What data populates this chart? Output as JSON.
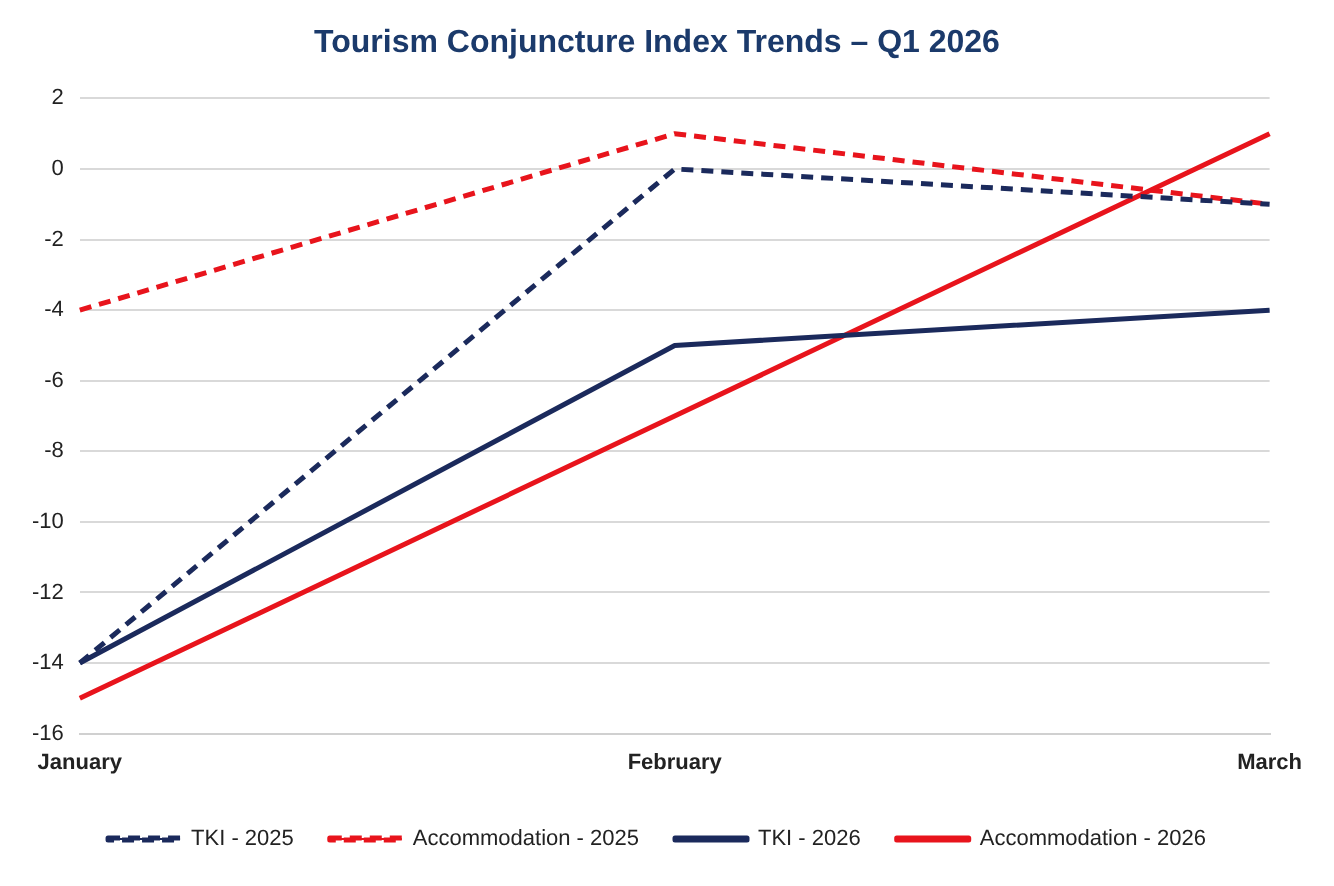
{
  "chart_data": {
    "type": "line",
    "title": "Tourism Conjuncture Index Trends – Q1 2026",
    "categories": [
      "January",
      "February",
      "March"
    ],
    "series": [
      {
        "name": "TKI - 2025",
        "color": "#1b2a5c",
        "values": [
          -14,
          0,
          -1
        ],
        "line_style": "dashed"
      },
      {
        "name": "Accommodation - 2025",
        "color": "#e8141c",
        "values": [
          -4,
          1,
          -1
        ],
        "line_style": "dashed"
      },
      {
        "name": "TKI - 2026",
        "color": "#1b2a5c",
        "values": [
          -14,
          -5,
          -4
        ],
        "line_style": "solid"
      },
      {
        "name": "Accommodation - 2026",
        "color": "#e8141c",
        "values": [
          -15,
          -7,
          1
        ],
        "line_style": "solid"
      }
    ],
    "ylim": [
      -16,
      2
    ],
    "yticks": [
      -16,
      -14,
      -12,
      -10,
      -8,
      -6,
      -4,
      -2,
      0,
      2
    ],
    "grid": "y",
    "legend": "bottom",
    "marker": "none"
  }
}
